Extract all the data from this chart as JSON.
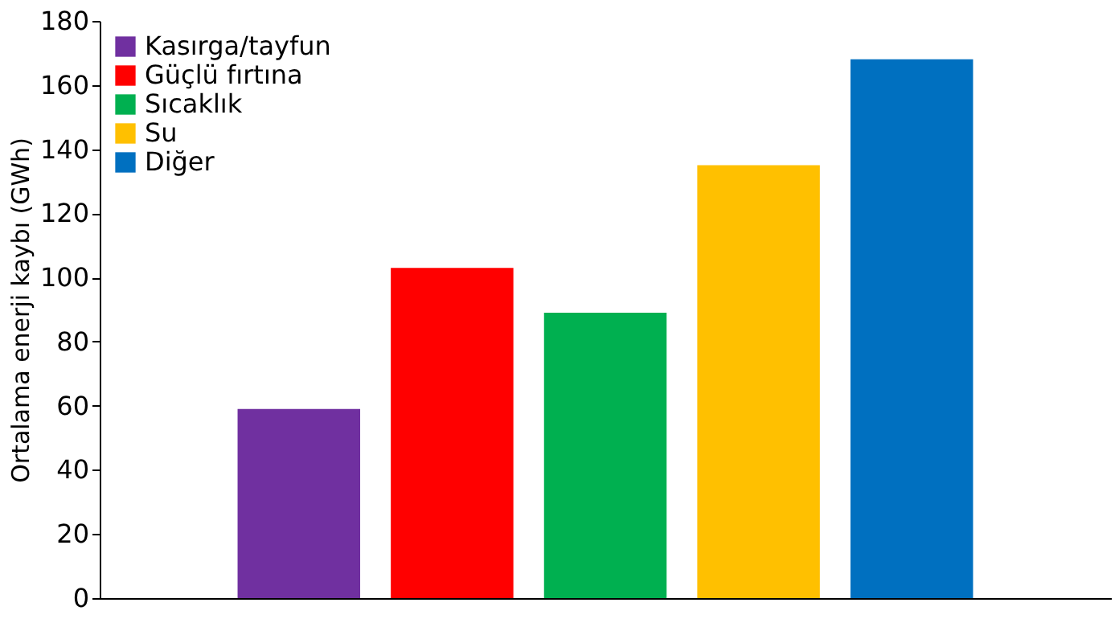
{
  "chart_data": {
    "type": "bar",
    "ylabel": "Ortalama enerji kaybı (GWh)",
    "categories": [
      null,
      null,
      null,
      null,
      null
    ],
    "series": [
      {
        "name": "Kasırga/tayfun",
        "color": "#7030a0",
        "values": [
          59,
          null,
          null,
          null,
          null
        ]
      },
      {
        "name": "Güçlü fırtına",
        "color": "#ff0000",
        "values": [
          null,
          103,
          null,
          null,
          null
        ]
      },
      {
        "name": "Sıcaklık",
        "color": "#00b050",
        "values": [
          null,
          null,
          89,
          null,
          null
        ]
      },
      {
        "name": "Su",
        "color": "#ffc000",
        "values": [
          null,
          null,
          null,
          135,
          null
        ]
      },
      {
        "name": "Diğer",
        "color": "#0070c0",
        "values": [
          null,
          null,
          null,
          null,
          168
        ]
      }
    ],
    "ylim": [
      0,
      180
    ],
    "yticks": [
      0,
      20,
      40,
      60,
      80,
      100,
      120,
      140,
      160,
      180
    ],
    "grid": false,
    "legend": "top left",
    "tick_labels": "y"
  }
}
